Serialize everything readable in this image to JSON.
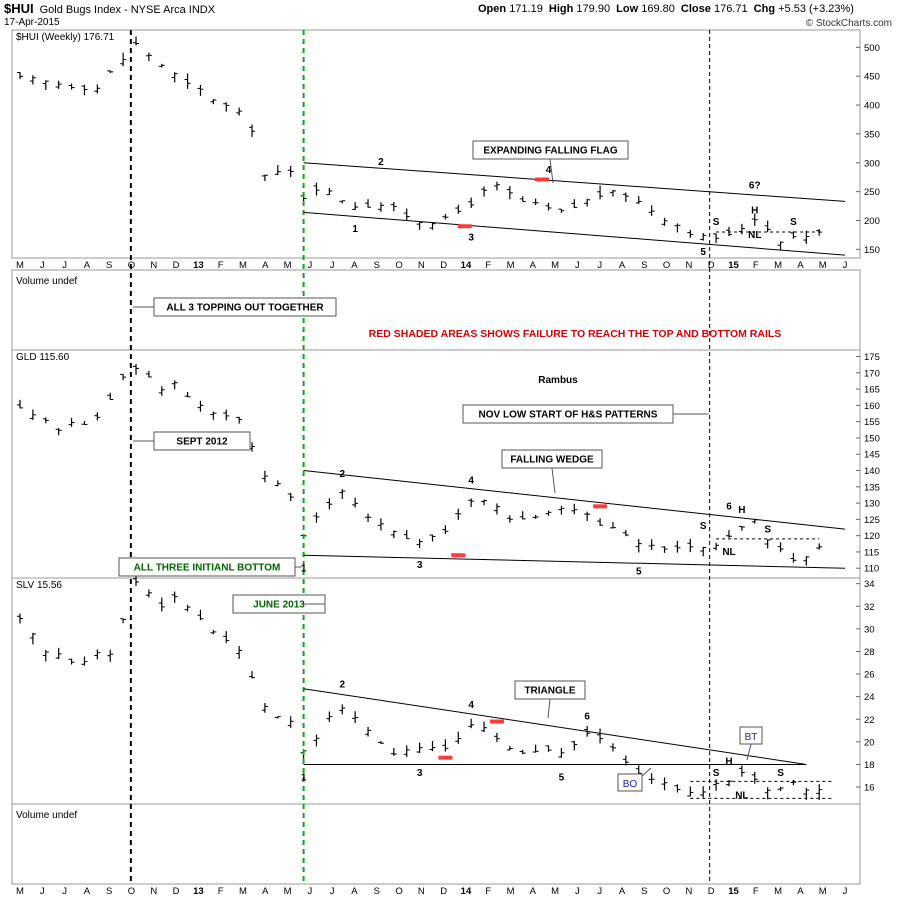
{
  "header": {
    "symbol": "$HUI",
    "name": "Gold Bugs Index - NYSE Arca INDX",
    "date": "17-Apr-2015",
    "open_label": "Open",
    "open": "171.19",
    "high_label": "High",
    "high": "179.90",
    "low_label": "Low",
    "low": "169.80",
    "close_label": "Close",
    "close": "176.71",
    "chg_label": "Chg",
    "chg": "+5.53 (+3.23%)",
    "credit": "© StockCharts.com"
  },
  "colors": {
    "price": "#000000",
    "green_line": "#00b000",
    "red_marker": "#ff3b3b",
    "annotation_red": "#dd0000",
    "annotation_green": "#006600",
    "bo_bt_blue": "#1a1aaa"
  },
  "chart_data": [
    {
      "type": "ohlc",
      "panel": "hui",
      "title": "$HUI (Weekly) 176.71",
      "y_ticks": [
        150,
        200,
        250,
        300,
        350,
        400,
        450,
        500
      ],
      "ylim": [
        135,
        530
      ],
      "x_tick_labels": [
        "M",
        "J",
        "J",
        "A",
        "S",
        "O",
        "N",
        "D",
        "13",
        "F",
        "M",
        "A",
        "M",
        "J",
        "J",
        "A",
        "S",
        "O",
        "N",
        "D",
        "14",
        "F",
        "M",
        "A",
        "M",
        "J",
        "J",
        "A",
        "S",
        "O",
        "N",
        "D",
        "15",
        "F",
        "M",
        "A",
        "M",
        "J"
      ],
      "close_series": [
        {
          "x": 0,
          "y": 445
        },
        {
          "x": 6,
          "y": 430
        },
        {
          "x": 9,
          "y": 505
        },
        {
          "x": 11,
          "y": 470
        },
        {
          "x": 13,
          "y": 434
        },
        {
          "x": 14,
          "y": 425
        },
        {
          "x": 17,
          "y": 384
        },
        {
          "x": 18,
          "y": 360
        },
        {
          "x": 19,
          "y": 278
        },
        {
          "x": 21,
          "y": 283
        },
        {
          "x": 22,
          "y": 242
        },
        {
          "x": 23,
          "y": 258
        },
        {
          "x": 26,
          "y": 227
        },
        {
          "x": 28,
          "y": 228
        },
        {
          "x": 31,
          "y": 200
        },
        {
          "x": 33,
          "y": 200
        },
        {
          "x": 36,
          "y": 248
        },
        {
          "x": 37,
          "y": 258
        },
        {
          "x": 39,
          "y": 232
        },
        {
          "x": 42,
          "y": 213
        },
        {
          "x": 45,
          "y": 245
        },
        {
          "x": 47,
          "y": 246
        },
        {
          "x": 50,
          "y": 205
        },
        {
          "x": 53,
          "y": 170
        },
        {
          "x": 55,
          "y": 172
        },
        {
          "x": 57,
          "y": 205
        },
        {
          "x": 59,
          "y": 168
        },
        {
          "x": 61,
          "y": 175
        },
        {
          "x": 62,
          "y": 177
        }
      ],
      "annotations": [
        {
          "text": "2",
          "x": 28,
          "y": 296
        },
        {
          "text": "4",
          "x": 41,
          "y": 282
        },
        {
          "text": "1",
          "x": 26,
          "y": 180
        },
        {
          "text": "3",
          "x": 35,
          "y": 165
        },
        {
          "text": "5",
          "x": 53,
          "y": 140
        },
        {
          "text": "6?",
          "x": 57,
          "y": 255
        },
        {
          "text": "S",
          "x": 54,
          "y": 192
        },
        {
          "text": "H",
          "x": 57,
          "y": 212
        },
        {
          "text": "NL",
          "x": 57,
          "y": 170
        },
        {
          "text": "S",
          "x": 60,
          "y": 192
        }
      ],
      "callouts": [
        {
          "text": "EXPANDING FALLING FLAG"
        }
      ]
    },
    {
      "type": "volume",
      "panel": "vol_top",
      "title": "Volume undef",
      "callouts": [
        {
          "text": "ALL 3 TOPPING OUT TOGETHER"
        }
      ],
      "note": "RED SHADED AREAS SHOWS FAILURE TO REACH THE TOP AND BOTTOM RAILS"
    },
    {
      "type": "ohlc",
      "panel": "gld",
      "title": "GLD 115.60",
      "y_ticks": [
        110,
        115,
        120,
        125,
        130,
        135,
        140,
        145,
        150,
        155,
        160,
        165,
        170,
        175
      ],
      "ylim": [
        107,
        177
      ],
      "close_series": [
        {
          "x": 0,
          "y": 160
        },
        {
          "x": 3,
          "y": 153
        },
        {
          "x": 6,
          "y": 156
        },
        {
          "x": 8,
          "y": 168
        },
        {
          "x": 9,
          "y": 172
        },
        {
          "x": 11,
          "y": 165
        },
        {
          "x": 12,
          "y": 167
        },
        {
          "x": 14,
          "y": 160
        },
        {
          "x": 17,
          "y": 155
        },
        {
          "x": 19,
          "y": 138
        },
        {
          "x": 21,
          "y": 132
        },
        {
          "x": 22,
          "y": 121
        },
        {
          "x": 24,
          "y": 130
        },
        {
          "x": 25,
          "y": 134
        },
        {
          "x": 27,
          "y": 126
        },
        {
          "x": 29,
          "y": 122
        },
        {
          "x": 31,
          "y": 118
        },
        {
          "x": 33,
          "y": 122
        },
        {
          "x": 35,
          "y": 130
        },
        {
          "x": 36,
          "y": 131
        },
        {
          "x": 38,
          "y": 126
        },
        {
          "x": 40,
          "y": 125
        },
        {
          "x": 42,
          "y": 128
        },
        {
          "x": 44,
          "y": 126
        },
        {
          "x": 46,
          "y": 122
        },
        {
          "x": 48,
          "y": 118
        },
        {
          "x": 50,
          "y": 115
        },
        {
          "x": 52,
          "y": 116
        },
        {
          "x": 54,
          "y": 117
        },
        {
          "x": 55,
          "y": 120
        },
        {
          "x": 57,
          "y": 124
        },
        {
          "x": 58,
          "y": 119
        },
        {
          "x": 60,
          "y": 112
        },
        {
          "x": 62,
          "y": 116
        }
      ],
      "annotations": [
        {
          "text": "2",
          "x": 25,
          "y": 138
        },
        {
          "text": "4",
          "x": 35,
          "y": 136
        },
        {
          "text": "1",
          "x": 22,
          "y": 109
        },
        {
          "text": "3",
          "x": 31,
          "y": 110
        },
        {
          "text": "5",
          "x": 48,
          "y": 108
        },
        {
          "text": "6",
          "x": 55,
          "y": 128
        },
        {
          "text": "H",
          "x": 56,
          "y": 127
        },
        {
          "text": "S",
          "x": 53,
          "y": 122
        },
        {
          "text": "NL",
          "x": 55,
          "y": 114
        },
        {
          "text": "S",
          "x": 58,
          "y": 121
        }
      ],
      "callouts": [
        {
          "text": "Rambus"
        },
        {
          "text": "NOV LOW START OF H&S  PATTERNS"
        },
        {
          "text": "SEPT 2012"
        },
        {
          "text": "FALLING WEDGE"
        },
        {
          "text": "ALL THREE INITIANL BOTTOM"
        }
      ]
    },
    {
      "type": "ohlc",
      "panel": "slv",
      "title": "SLV 15.56",
      "y_ticks": [
        16,
        18,
        20,
        22,
        24,
        26,
        28,
        30,
        32,
        34
      ],
      "ylim": [
        14.5,
        34.5
      ],
      "close_series": [
        {
          "x": 0,
          "y": 31
        },
        {
          "x": 2,
          "y": 28
        },
        {
          "x": 4,
          "y": 27
        },
        {
          "x": 7,
          "y": 28
        },
        {
          "x": 9,
          "y": 34
        },
        {
          "x": 11,
          "y": 32
        },
        {
          "x": 12,
          "y": 33
        },
        {
          "x": 14,
          "y": 31
        },
        {
          "x": 17,
          "y": 28
        },
        {
          "x": 19,
          "y": 23
        },
        {
          "x": 21,
          "y": 22
        },
        {
          "x": 22,
          "y": 19
        },
        {
          "x": 24,
          "y": 22
        },
        {
          "x": 25,
          "y": 23
        },
        {
          "x": 27,
          "y": 21
        },
        {
          "x": 29,
          "y": 19
        },
        {
          "x": 31,
          "y": 19.2
        },
        {
          "x": 33,
          "y": 19.5
        },
        {
          "x": 35,
          "y": 21.5
        },
        {
          "x": 36,
          "y": 21
        },
        {
          "x": 38,
          "y": 19.5
        },
        {
          "x": 40,
          "y": 19
        },
        {
          "x": 42,
          "y": 19
        },
        {
          "x": 44,
          "y": 20.5
        },
        {
          "x": 46,
          "y": 19.5
        },
        {
          "x": 48,
          "y": 17.5
        },
        {
          "x": 50,
          "y": 16.2
        },
        {
          "x": 52,
          "y": 15.5
        },
        {
          "x": 54,
          "y": 16.2
        },
        {
          "x": 56,
          "y": 17.4
        },
        {
          "x": 58,
          "y": 15.8
        },
        {
          "x": 60,
          "y": 16.2
        },
        {
          "x": 62,
          "y": 15.6
        }
      ],
      "annotations": [
        {
          "text": "2",
          "x": 25,
          "y": 24.8
        },
        {
          "text": "4",
          "x": 35,
          "y": 23
        },
        {
          "text": "6",
          "x": 44,
          "y": 22
        },
        {
          "text": "1",
          "x": 22,
          "y": 16.6
        },
        {
          "text": "3",
          "x": 31,
          "y": 17
        },
        {
          "text": "5",
          "x": 42,
          "y": 16.6
        },
        {
          "text": "H",
          "x": 55,
          "y": 18
        },
        {
          "text": "S",
          "x": 54,
          "y": 17
        },
        {
          "text": "NL",
          "x": 56,
          "y": 15
        },
        {
          "text": "S",
          "x": 59,
          "y": 17
        },
        {
          "text": "BT"
        },
        {
          "text": "BO"
        }
      ],
      "callouts": [
        {
          "text": "JUNE 2013"
        },
        {
          "text": "TRIANGLE"
        }
      ]
    },
    {
      "type": "volume",
      "panel": "vol_bottom",
      "title": "Volume undef"
    }
  ]
}
